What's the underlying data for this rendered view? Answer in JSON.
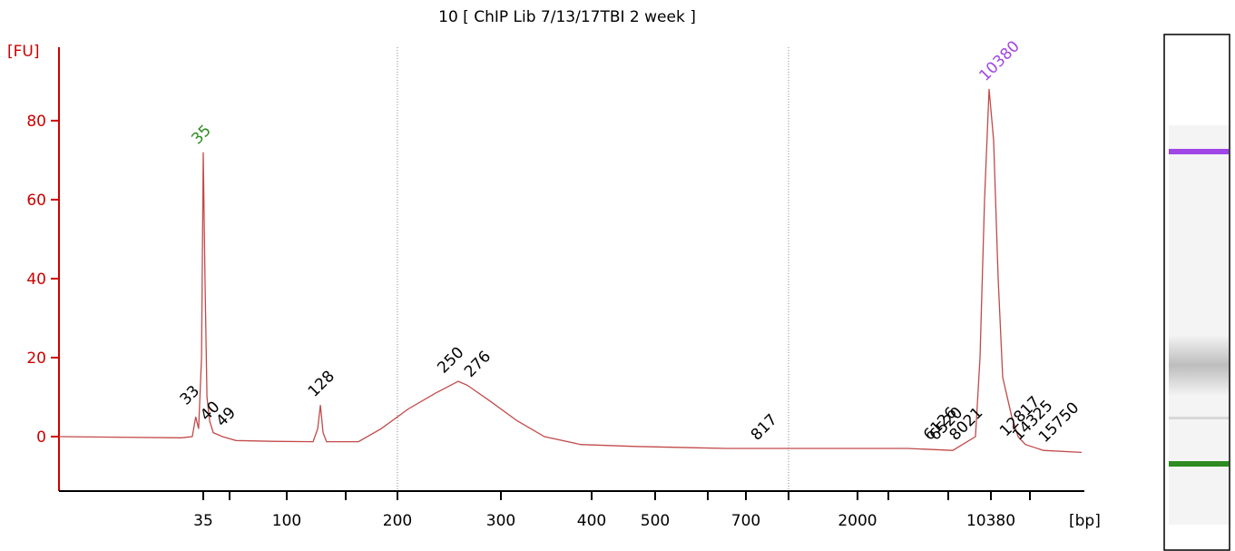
{
  "chart_data": {
    "type": "line",
    "title": "10  [ ChIP Lib 7/13/17TBI 2 week ]",
    "y_label": "[FU]",
    "x_label": "[bp]",
    "color": "#c24a4a",
    "axis_color": "#cc0000",
    "x": [
      10,
      31.2,
      33.1,
      33.7,
      34.2,
      34.7,
      35,
      36.0,
      37.1,
      38.6,
      40.7,
      45.9,
      55.6,
      87.3,
      122.3,
      126.2,
      128.5,
      130.8,
      133.8,
      162.3,
      184.2,
      210.5,
      236.8,
      258.8,
      267.5,
      289.5,
      318,
      348,
      388,
      468.6,
      647.6,
      1408,
      4273,
      7360,
      9157,
      9517,
      9877,
      10236,
      10702,
      11240,
      11777,
      12852,
      13604,
      14463,
      15500,
      16900
    ],
    "values": [
      0,
      -0.3,
      0,
      5,
      2,
      20,
      72,
      40,
      10,
      4,
      1,
      0,
      -1,
      -1.2,
      -1.3,
      2,
      8,
      1,
      -1.3,
      -1.3,
      2,
      7,
      11,
      14,
      13,
      9,
      4,
      0,
      -2,
      -2.5,
      -3,
      -3,
      -3,
      -3.5,
      0,
      20,
      60,
      88,
      75,
      40,
      15,
      5,
      0,
      -2,
      -3.5,
      -4
    ],
    "xlim": [
      10,
      17000
    ],
    "ylim": [
      -13.8,
      98.6
    ],
    "yticks": [
      0,
      20,
      40,
      60,
      80
    ],
    "xticks": [
      35,
      100,
      200,
      300,
      400,
      500,
      700,
      2000,
      10380
    ],
    "xminor_ticks": [
      50,
      150,
      600,
      1000,
      3000,
      7000,
      15000
    ],
    "region_bounds": [
      200,
      1000
    ],
    "peaks": {
      "x": [
        33,
        40,
        49,
        128,
        250,
        276,
        817,
        6126,
        6520,
        8021,
        12817,
        14325,
        15750
      ],
      "values": [
        6,
        2,
        0.5,
        8,
        14,
        13,
        -3,
        -3,
        -3,
        -3,
        -2,
        -3,
        -3.5
      ]
    },
    "markers": {
      "x": [
        35,
        10380
      ],
      "values": [
        72,
        88
      ],
      "colors": [
        "#2e8b22",
        "#a046e6"
      ]
    }
  }
}
